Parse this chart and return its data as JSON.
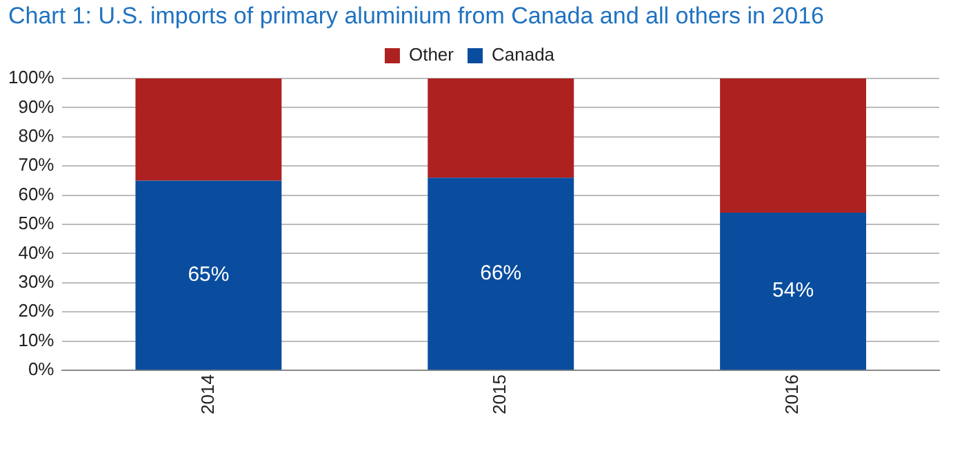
{
  "chart_data": {
    "type": "bar",
    "title": "Chart 1: U.S. imports of primary aluminium from Canada and all others in 2016",
    "categories": [
      "2014",
      "2015",
      "2016"
    ],
    "stacked": true,
    "series": [
      {
        "name": "Canada",
        "color": "#0a4d9e",
        "values": [
          65,
          66,
          54
        ],
        "value_labels": [
          "65%",
          "66%",
          "54%"
        ]
      },
      {
        "name": "Other",
        "color": "#ad2121",
        "values": [
          35,
          34,
          46
        ]
      }
    ],
    "ylim": [
      0,
      100
    ],
    "yticks": [
      {
        "value": 0,
        "label": "0%"
      },
      {
        "value": 10,
        "label": "10%"
      },
      {
        "value": 20,
        "label": "20%"
      },
      {
        "value": 30,
        "label": "30%"
      },
      {
        "value": 40,
        "label": "40%"
      },
      {
        "value": 50,
        "label": "50%"
      },
      {
        "value": 60,
        "label": "60%"
      },
      {
        "value": 70,
        "label": "70%"
      },
      {
        "value": 80,
        "label": "80%"
      },
      {
        "value": 90,
        "label": "90%"
      },
      {
        "value": 100,
        "label": "100%"
      }
    ],
    "grid": "y",
    "legend": "top"
  }
}
